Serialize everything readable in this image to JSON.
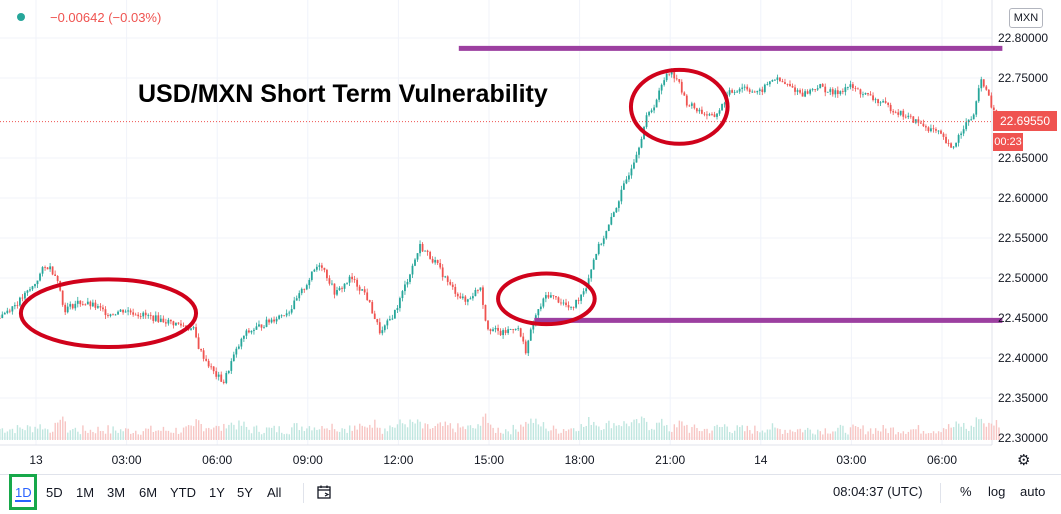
{
  "header": {
    "change": "−0.00642 (−0.03%)",
    "currency": "MXN"
  },
  "chart_data": {
    "type": "candlestick",
    "title": "USD/MXN Short Term Vulnerability",
    "y_ticks": [
      "22.80000",
      "22.75000",
      "22.65000",
      "22.60000",
      "22.55000",
      "22.50000",
      "22.45000",
      "22.40000",
      "22.35000",
      "22.30000"
    ],
    "y_tick_values": [
      22.8,
      22.75,
      22.65,
      22.6,
      22.55,
      22.5,
      22.45,
      22.4,
      22.35,
      22.3
    ],
    "ylim": [
      22.296,
      22.821
    ],
    "x_ticks": [
      "13",
      "03:00",
      "06:00",
      "09:00",
      "12:00",
      "15:00",
      "18:00",
      "21:00",
      "14",
      "03:00",
      "06:00"
    ],
    "x_tick_hours": [
      0,
      3,
      6,
      9,
      12,
      15,
      18,
      21,
      24,
      27,
      30
    ],
    "x_range_hours": [
      -1.2,
      31.9
    ],
    "current_price": "22.69550",
    "current_price_value": 22.6955,
    "countdown": "00:23",
    "price_path": [
      [
        -1.2,
        22.45
      ],
      [
        -0.5,
        22.47
      ],
      [
        0.0,
        22.49
      ],
      [
        0.3,
        22.51
      ],
      [
        0.5,
        22.515
      ],
      [
        0.8,
        22.5
      ],
      [
        1.0,
        22.46
      ],
      [
        1.5,
        22.47
      ],
      [
        2.0,
        22.465
      ],
      [
        2.5,
        22.455
      ],
      [
        3.0,
        22.46
      ],
      [
        3.5,
        22.455
      ],
      [
        4.0,
        22.45
      ],
      [
        4.5,
        22.445
      ],
      [
        5.0,
        22.44
      ],
      [
        5.3,
        22.435
      ],
      [
        5.5,
        22.41
      ],
      [
        6.0,
        22.38
      ],
      [
        6.3,
        22.37
      ],
      [
        6.6,
        22.4
      ],
      [
        7.0,
        22.43
      ],
      [
        7.5,
        22.44
      ],
      [
        8.0,
        22.45
      ],
      [
        8.5,
        22.46
      ],
      [
        9.0,
        22.49
      ],
      [
        9.3,
        22.51
      ],
      [
        9.5,
        22.52
      ],
      [
        10.0,
        22.48
      ],
      [
        10.5,
        22.5
      ],
      [
        11.0,
        22.48
      ],
      [
        11.5,
        22.43
      ],
      [
        12.0,
        22.46
      ],
      [
        12.5,
        22.51
      ],
      [
        12.8,
        22.54
      ],
      [
        13.3,
        22.52
      ],
      [
        13.8,
        22.49
      ],
      [
        14.3,
        22.47
      ],
      [
        14.8,
        22.49
      ],
      [
        15.0,
        22.44
      ],
      [
        15.5,
        22.43
      ],
      [
        16.0,
        22.44
      ],
      [
        16.3,
        22.41
      ],
      [
        16.6,
        22.45
      ],
      [
        17.0,
        22.48
      ],
      [
        17.5,
        22.47
      ],
      [
        17.8,
        22.46
      ],
      [
        18.3,
        22.49
      ],
      [
        18.6,
        22.53
      ],
      [
        19.0,
        22.56
      ],
      [
        19.3,
        22.59
      ],
      [
        19.6,
        22.62
      ],
      [
        20.0,
        22.66
      ],
      [
        20.3,
        22.7
      ],
      [
        20.6,
        22.72
      ],
      [
        21.0,
        22.76
      ],
      [
        21.3,
        22.75
      ],
      [
        21.6,
        22.72
      ],
      [
        22.0,
        22.71
      ],
      [
        22.5,
        22.7
      ],
      [
        22.8,
        22.715
      ],
      [
        23.0,
        22.73
      ],
      [
        23.5,
        22.74
      ],
      [
        24.0,
        22.73
      ],
      [
        24.5,
        22.75
      ],
      [
        25.0,
        22.74
      ],
      [
        25.5,
        22.73
      ],
      [
        26.0,
        22.74
      ],
      [
        26.5,
        22.73
      ],
      [
        27.0,
        22.74
      ],
      [
        27.5,
        22.73
      ],
      [
        28.0,
        22.72
      ],
      [
        28.5,
        22.71
      ],
      [
        29.0,
        22.7
      ],
      [
        29.5,
        22.69
      ],
      [
        30.0,
        22.68
      ],
      [
        30.4,
        22.66
      ],
      [
        30.8,
        22.69
      ],
      [
        31.1,
        22.7
      ],
      [
        31.4,
        22.75
      ],
      [
        31.9,
        22.6955
      ]
    ],
    "resistance_line": {
      "price": 22.787,
      "from_hour": 14.0,
      "to_hour": 31.9
    },
    "support_line": {
      "price": 22.447,
      "from_hour": 16.5,
      "to_hour": 31.9
    },
    "highlight_ellipses": [
      {
        "center_hour": 2.4,
        "center_price": 22.456,
        "half_width_hours": 2.9,
        "half_height_price": 0.0423
      },
      {
        "center_hour": 16.9,
        "center_price": 22.474,
        "half_width_hours": 1.6,
        "half_height_price": 0.0317
      },
      {
        "center_hour": 21.3,
        "center_price": 22.714,
        "half_width_hours": 1.6,
        "half_height_price": 0.0462
      }
    ]
  },
  "footer": {
    "ranges": [
      "1D",
      "5D",
      "1M",
      "3M",
      "6M",
      "YTD",
      "1Y",
      "5Y",
      "All"
    ],
    "active_range": "1D",
    "clock": "08:04:37 (UTC)",
    "options": [
      "%",
      "log",
      "auto"
    ]
  },
  "colors": {
    "up": "#26a69a",
    "down": "#ef5350",
    "annotation_red": "#d0021b",
    "annotation_purple": "#9c3fa0",
    "volume_line": "#f4a261"
  }
}
